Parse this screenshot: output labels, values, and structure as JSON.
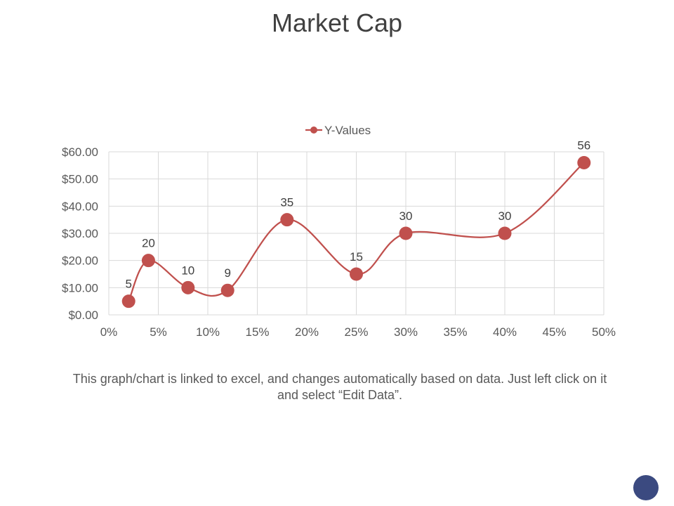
{
  "slide": {
    "title": "Market Cap",
    "caption": "This graph/chart is linked to excel, and changes automatically based on data. Just left click on it and select “Edit Data”."
  },
  "colors": {
    "series": "#c0504d",
    "grid": "#d9d9d9",
    "text": "#595959",
    "nav_dot": "#3b4a80"
  },
  "chart_data": {
    "type": "scatter",
    "smooth": true,
    "title": "",
    "legend": "top-center",
    "grid": true,
    "series": [
      {
        "name": "Y-Values",
        "x": [
          0.02,
          0.04,
          0.08,
          0.12,
          0.18,
          0.25,
          0.3,
          0.4,
          0.48
        ],
        "values": [
          5,
          20,
          10,
          9,
          35,
          15,
          30,
          30,
          56
        ],
        "labels": [
          "5",
          "20",
          "10",
          "9",
          "35",
          "15",
          "30",
          "30",
          "56"
        ]
      }
    ],
    "x_ticks": [
      0,
      0.05,
      0.1,
      0.15,
      0.2,
      0.25,
      0.3,
      0.35,
      0.4,
      0.45,
      0.5
    ],
    "x_tick_labels": [
      "0%",
      "5%",
      "10%",
      "15%",
      "20%",
      "25%",
      "30%",
      "35%",
      "40%",
      "45%",
      "50%"
    ],
    "y_ticks": [
      0,
      10,
      20,
      30,
      40,
      50,
      60
    ],
    "y_tick_labels": [
      "$0.00",
      "$10.00",
      "$20.00",
      "$30.00",
      "$40.00",
      "$50.00",
      "$60.00"
    ],
    "xlim": [
      0,
      0.5
    ],
    "ylim": [
      0,
      60
    ],
    "xlabel": "",
    "ylabel": ""
  }
}
